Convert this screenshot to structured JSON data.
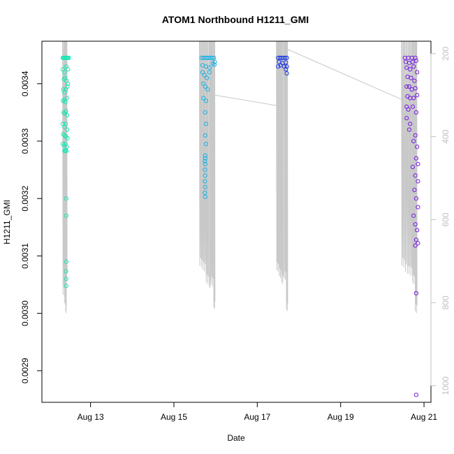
{
  "chart_data": {
    "type": "scatter",
    "title": "ATOM1 Northbound H1211_GMI",
    "xlabel": "Date",
    "ylabel": "H1211_GMI",
    "xlim": [
      "2019-08-11T20:00",
      "2019-08-21T04:00"
    ],
    "ylim": [
      0.002845,
      0.003474
    ],
    "xticks": [
      {
        "value": "2019-08-13",
        "label": "Aug 13"
      },
      {
        "value": "2019-08-15",
        "label": "Aug 15"
      },
      {
        "value": "2019-08-17",
        "label": "Aug 17"
      },
      {
        "value": "2019-08-19",
        "label": "Aug 19"
      },
      {
        "value": "2019-08-21",
        "label": "Aug 21"
      }
    ],
    "yticks": [
      {
        "value": 0.0029,
        "label": "0.0029"
      },
      {
        "value": 0.003,
        "label": "0.0030"
      },
      {
        "value": 0.0031,
        "label": "0.0031"
      },
      {
        "value": 0.0032,
        "label": "0.0032"
      },
      {
        "value": 0.0033,
        "label": "0.0033"
      },
      {
        "value": 0.0034,
        "label": "0.0034"
      }
    ],
    "secondary_axis": {
      "position": "right",
      "color": "#c0c0c0",
      "range": [
        1040,
        170
      ],
      "ticks": [
        {
          "value": 200,
          "label": "200"
        },
        {
          "value": 400,
          "label": "400"
        },
        {
          "value": 600,
          "label": "600"
        },
        {
          "value": 800,
          "label": "800"
        },
        {
          "value": 1000,
          "label": "1000"
        }
      ]
    },
    "grid": false,
    "legend": "none",
    "flights": [
      {
        "color": "#19e5b3",
        "points": [
          [
            "2019-08-12T08:00",
            0.003445
          ],
          [
            "2019-08-12T08:30",
            0.003445
          ],
          [
            "2019-08-12T09:00",
            0.003445
          ],
          [
            "2019-08-12T09:30",
            0.003445
          ],
          [
            "2019-08-12T10:00",
            0.003445
          ],
          [
            "2019-08-12T10:30",
            0.003445
          ],
          [
            "2019-08-12T11:00",
            0.003445
          ],
          [
            "2019-08-12T11:30",
            0.003445
          ],
          [
            "2019-08-12T08:00",
            0.003425
          ],
          [
            "2019-08-12T09:00",
            0.00342
          ],
          [
            "2019-08-12T10:00",
            0.00343
          ],
          [
            "2019-08-12T11:00",
            0.003425
          ],
          [
            "2019-08-12T08:40",
            0.003408
          ],
          [
            "2019-08-12T09:20",
            0.00341
          ],
          [
            "2019-08-12T10:10",
            0.003405
          ],
          [
            "2019-08-12T10:50",
            0.0034
          ],
          [
            "2019-08-12T08:20",
            0.00339
          ],
          [
            "2019-08-12T09:00",
            0.003385
          ],
          [
            "2019-08-12T09:50",
            0.00339
          ],
          [
            "2019-08-12T10:40",
            0.003395
          ],
          [
            "2019-08-12T08:10",
            0.00337
          ],
          [
            "2019-08-12T08:50",
            0.003372
          ],
          [
            "2019-08-12T09:30",
            0.003368
          ],
          [
            "2019-08-12T10:20",
            0.003375
          ],
          [
            "2019-08-12T08:30",
            0.00335
          ],
          [
            "2019-08-12T09:10",
            0.003348
          ],
          [
            "2019-08-12T09:50",
            0.003352
          ],
          [
            "2019-08-12T10:30",
            0.003345
          ],
          [
            "2019-08-12T08:00",
            0.00333
          ],
          [
            "2019-08-12T09:00",
            0.003325
          ],
          [
            "2019-08-12T09:40",
            0.00333
          ],
          [
            "2019-08-12T10:30",
            0.00332
          ],
          [
            "2019-08-12T08:20",
            0.003312
          ],
          [
            "2019-08-12T09:00",
            0.00331
          ],
          [
            "2019-08-12T09:50",
            0.003308
          ],
          [
            "2019-08-12T10:40",
            0.003305
          ],
          [
            "2019-08-12T08:00",
            0.003295
          ],
          [
            "2019-08-12T08:50",
            0.003292
          ],
          [
            "2019-08-12T09:30",
            0.003295
          ],
          [
            "2019-08-12T10:20",
            0.00329
          ],
          [
            "2019-08-12T09:00",
            0.003283
          ],
          [
            "2019-08-12T09:30",
            0.003283
          ],
          [
            "2019-08-12T10:00",
            0.003283
          ],
          [
            "2019-08-12T10:00",
            0.0032
          ],
          [
            "2019-08-12T10:00",
            0.00317
          ],
          [
            "2019-08-12T10:00",
            0.00309
          ],
          [
            "2019-08-12T09:50",
            0.003073
          ],
          [
            "2019-08-12T10:00",
            0.00306
          ],
          [
            "2019-08-12T10:00",
            0.003048
          ]
        ],
        "profiles": [
          {
            "times": [
              "2019-08-12T07:55",
              "2019-08-12T09:35"
            ],
            "low": 790
          },
          {
            "times": [
              "2019-08-12T08:50",
              "2019-08-12T09:50"
            ],
            "low": 810
          },
          {
            "times": [
              "2019-08-12T09:40",
              "2019-08-12T10:05"
            ],
            "low": 830
          },
          {
            "times": [
              "2019-08-12T09:45",
              "2019-08-12T10:30"
            ],
            "low": 750
          }
        ]
      },
      {
        "color": "#19b3e5",
        "points": [
          [
            "2019-08-15T16:00",
            0.003445
          ],
          [
            "2019-08-15T17:00",
            0.003445
          ],
          [
            "2019-08-15T18:00",
            0.003445
          ],
          [
            "2019-08-15T19:00",
            0.003445
          ],
          [
            "2019-08-15T20:00",
            0.003445
          ],
          [
            "2019-08-15T21:00",
            0.003445
          ],
          [
            "2019-08-15T22:00",
            0.003445
          ],
          [
            "2019-08-15T23:00",
            0.003445
          ],
          [
            "2019-08-15T16:30",
            0.003432
          ],
          [
            "2019-08-15T18:30",
            0.00343
          ],
          [
            "2019-08-15T20:30",
            0.003428
          ],
          [
            "2019-08-15T22:30",
            0.003435
          ],
          [
            "2019-08-15T23:30",
            0.003438
          ],
          [
            "2019-08-15T23:20",
            0.003433
          ],
          [
            "2019-08-15T16:30",
            0.00342
          ],
          [
            "2019-08-15T17:30",
            0.003415
          ],
          [
            "2019-08-15T19:00",
            0.00341
          ],
          [
            "2019-08-15T20:30",
            0.00342
          ],
          [
            "2019-08-15T17:00",
            0.0034
          ],
          [
            "2019-08-15T18:00",
            0.003395
          ],
          [
            "2019-08-15T19:30",
            0.00339
          ],
          [
            "2019-08-15T17:00",
            0.003375
          ],
          [
            "2019-08-15T18:30",
            0.00337
          ],
          [
            "2019-08-15T18:00",
            0.00335
          ],
          [
            "2019-08-15T18:30",
            0.00333
          ],
          [
            "2019-08-15T18:00",
            0.00331
          ],
          [
            "2019-08-15T18:30",
            0.003295
          ],
          [
            "2019-08-15T18:00",
            0.003275
          ],
          [
            "2019-08-15T18:00",
            0.00327
          ],
          [
            "2019-08-15T17:50",
            0.003265
          ],
          [
            "2019-08-15T18:00",
            0.00326
          ],
          [
            "2019-08-15T17:50",
            0.00325
          ],
          [
            "2019-08-15T18:00",
            0.00324
          ],
          [
            "2019-08-15T17:50",
            0.00323
          ],
          [
            "2019-08-15T18:00",
            0.00322
          ],
          [
            "2019-08-15T17:50",
            0.00321
          ],
          [
            "2019-08-15T18:00",
            0.003203
          ]
        ],
        "profiles": [
          {
            "times": [
              "2019-08-15T14:40",
              "2019-08-15T16:20"
            ],
            "low": 720
          },
          {
            "times": [
              "2019-08-15T16:30",
              "2019-08-15T18:10"
            ],
            "low": 730
          },
          {
            "times": [
              "2019-08-15T18:20",
              "2019-08-15T20:00"
            ],
            "low": 760
          },
          {
            "times": [
              "2019-08-15T20:20",
              "2019-08-15T21:00"
            ],
            "low": 770
          },
          {
            "times": [
              "2019-08-15T21:10",
              "2019-08-15T22:40"
            ],
            "low": 765
          },
          {
            "times": [
              "2019-08-15T22:50",
              "2019-08-15T23:40"
            ],
            "low": 820
          }
        ]
      },
      {
        "color": "#1937e5",
        "points": [
          [
            "2019-08-17T12:00",
            0.003445
          ],
          [
            "2019-08-17T13:00",
            0.003445
          ],
          [
            "2019-08-17T14:00",
            0.003445
          ],
          [
            "2019-08-17T15:00",
            0.003445
          ],
          [
            "2019-08-17T16:00",
            0.003445
          ],
          [
            "2019-08-17T17:00",
            0.003445
          ],
          [
            "2019-08-17T12:30",
            0.003438
          ],
          [
            "2019-08-17T14:30",
            0.003436
          ],
          [
            "2019-08-17T16:30",
            0.003437
          ],
          [
            "2019-08-17T12:00",
            0.00343
          ],
          [
            "2019-08-17T13:30",
            0.003432
          ],
          [
            "2019-08-17T15:30",
            0.00343
          ],
          [
            "2019-08-17T17:00",
            0.00343
          ],
          [
            "2019-08-17T16:30",
            0.003425
          ],
          [
            "2019-08-17T17:00",
            0.003418
          ]
        ],
        "profiles": [
          {
            "times": [
              "2019-08-17T11:00",
              "2019-08-17T12:20"
            ],
            "low": 730
          },
          {
            "times": [
              "2019-08-17T12:30",
              "2019-08-17T13:40"
            ],
            "low": 745
          },
          {
            "times": [
              "2019-08-17T13:50",
              "2019-08-17T15:00"
            ],
            "low": 760
          },
          {
            "times": [
              "2019-08-17T15:20",
              "2019-08-17T16:30"
            ],
            "low": 750
          },
          {
            "times": [
              "2019-08-17T16:40",
              "2019-08-17T17:30"
            ],
            "low": 825
          }
        ]
      },
      {
        "color": "#7519e5",
        "points": [
          [
            "2019-08-20T13:00",
            0.003445
          ],
          [
            "2019-08-20T15:00",
            0.003445
          ],
          [
            "2019-08-20T17:00",
            0.003445
          ],
          [
            "2019-08-20T19:00",
            0.003445
          ],
          [
            "2019-08-20T13:30",
            0.003438
          ],
          [
            "2019-08-20T15:30",
            0.003436
          ],
          [
            "2019-08-20T17:30",
            0.003438
          ],
          [
            "2019-08-20T19:30",
            0.00344
          ],
          [
            "2019-08-20T14:00",
            0.003428
          ],
          [
            "2019-08-20T16:00",
            0.003425
          ],
          [
            "2019-08-20T18:00",
            0.00343
          ],
          [
            "2019-08-20T20:00",
            0.00342
          ],
          [
            "2019-08-20T14:30",
            0.003412
          ],
          [
            "2019-08-20T16:30",
            0.00341
          ],
          [
            "2019-08-20T18:30",
            0.003405
          ],
          [
            "2019-08-20T14:00",
            0.003395
          ],
          [
            "2019-08-20T15:30",
            0.003395
          ],
          [
            "2019-08-20T17:00",
            0.00339
          ],
          [
            "2019-08-20T19:00",
            0.003392
          ],
          [
            "2019-08-20T14:30",
            0.003378
          ],
          [
            "2019-08-20T16:00",
            0.003375
          ],
          [
            "2019-08-20T18:00",
            0.003375
          ],
          [
            "2019-08-20T20:00",
            0.00338
          ],
          [
            "2019-08-20T14:00",
            0.00336
          ],
          [
            "2019-08-20T15:00",
            0.003355
          ],
          [
            "2019-08-20T17:30",
            0.00336
          ],
          [
            "2019-08-20T19:30",
            0.00335
          ],
          [
            "2019-08-20T14:00",
            0.00334
          ],
          [
            "2019-08-20T16:00",
            0.00333
          ],
          [
            "2019-08-20T15:30",
            0.00332
          ],
          [
            "2019-08-20T19:00",
            0.00331
          ],
          [
            "2019-08-20T18:00",
            0.0033
          ],
          [
            "2019-08-20T20:00",
            0.00329
          ],
          [
            "2019-08-20T19:30",
            0.00327
          ],
          [
            "2019-08-20T20:30",
            0.00326
          ],
          [
            "2019-08-20T17:30",
            0.003255
          ],
          [
            "2019-08-20T19:00",
            0.00324
          ],
          [
            "2019-08-20T20:30",
            0.00323
          ],
          [
            "2019-08-20T18:30",
            0.003215
          ],
          [
            "2019-08-20T19:30",
            0.0032
          ],
          [
            "2019-08-20T20:30",
            0.003185
          ],
          [
            "2019-08-20T18:00",
            0.00317
          ],
          [
            "2019-08-20T19:00",
            0.003155
          ],
          [
            "2019-08-20T20:00",
            0.003145
          ],
          [
            "2019-08-20T19:30",
            0.003128
          ],
          [
            "2019-08-20T20:30",
            0.003122
          ],
          [
            "2019-08-20T19:00",
            0.003118
          ],
          [
            "2019-08-20T19:30",
            0.003035
          ],
          [
            "2019-08-20T19:30",
            0.002858
          ],
          [
            "2019-08-20T19:00",
            0.002825
          ],
          [
            "2019-08-20T19:30",
            0.002805
          ],
          [
            "2019-08-20T20:00",
            0.002785
          ],
          [
            "2019-08-20T19:30",
            0.002768
          ],
          [
            "2019-08-20T19:00",
            0.002755
          ],
          [
            "2019-08-20T19:30",
            0.00274
          ]
        ],
        "profiles": [
          {
            "times": [
              "2019-08-20T11:00",
              "2019-08-20T12:50"
            ],
            "low": 720
          },
          {
            "times": [
              "2019-08-20T13:00",
              "2019-08-20T15:00"
            ],
            "low": 735
          },
          {
            "times": [
              "2019-08-20T15:10",
              "2019-08-20T17:00"
            ],
            "low": 740
          },
          {
            "times": [
              "2019-08-20T17:10",
              "2019-08-20T18:40"
            ],
            "low": 760
          },
          {
            "times": [
              "2019-08-20T18:50",
              "2019-08-20T20:00"
            ],
            "low": 830
          }
        ]
      }
    ],
    "transit_track": [
      [
        "2019-08-15T23:40",
        300
      ],
      [
        "2019-08-17T11:00",
        325
      ],
      [
        "2019-08-17T17:40",
        190
      ],
      [
        "2019-08-20T11:00",
        310
      ]
    ],
    "profile_color": "#c8c8c8"
  }
}
